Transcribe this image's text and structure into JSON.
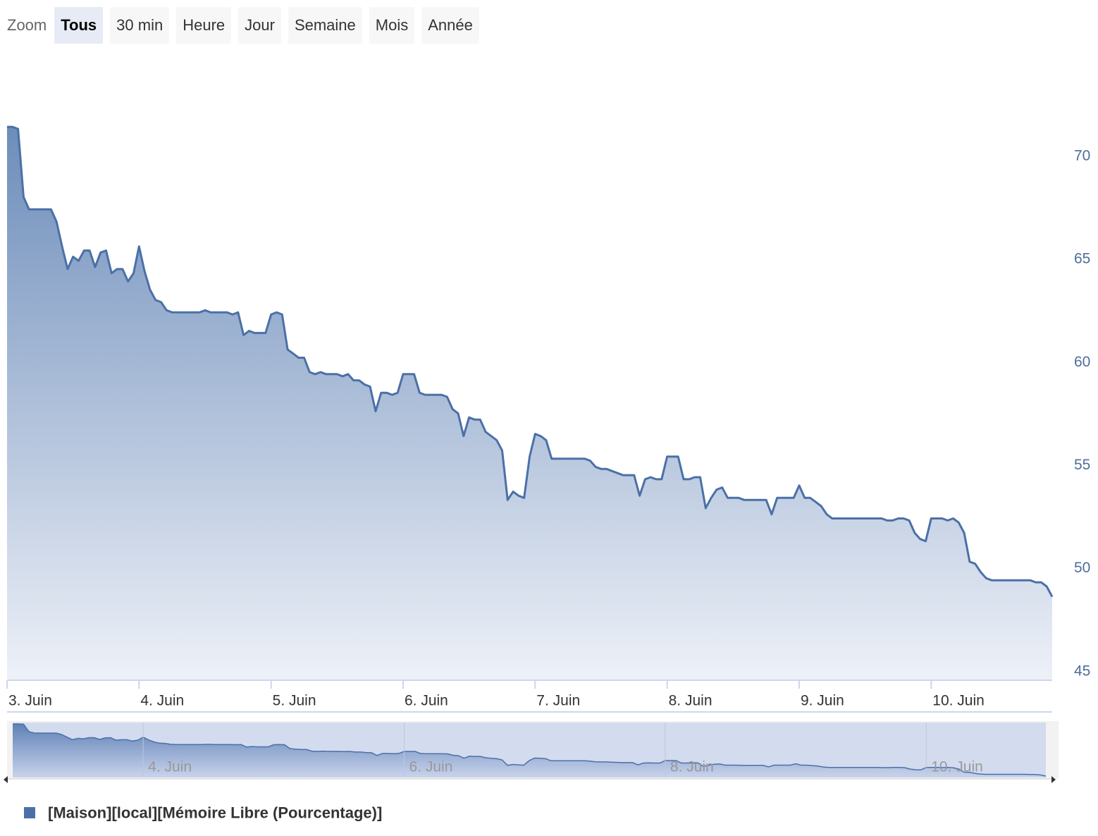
{
  "chart_data": {
    "type": "area",
    "range_selector": {
      "label": "Zoom",
      "buttons": [
        "Tous",
        "30 min",
        "Heure",
        "Jour",
        "Semaine",
        "Mois",
        "Année"
      ],
      "selected": 0
    },
    "x": [
      0,
      1,
      2,
      3,
      4,
      5,
      6,
      7,
      8,
      9,
      10,
      11,
      12,
      13,
      14,
      15,
      16,
      17,
      18,
      19,
      20,
      21,
      22,
      23,
      24,
      25,
      26,
      27,
      28,
      29,
      30,
      31,
      32,
      33,
      34,
      35,
      36,
      37,
      38,
      39,
      40,
      41,
      42,
      43,
      44,
      45,
      46,
      47,
      48,
      49,
      50,
      51,
      52,
      53,
      54,
      55,
      56,
      57,
      58,
      59,
      60,
      61,
      62,
      63,
      64,
      65,
      66,
      67,
      68,
      69,
      70,
      71,
      72,
      73,
      74,
      75,
      76,
      77,
      78,
      79,
      80,
      81,
      82,
      83,
      84,
      85,
      86,
      87,
      88,
      89,
      90,
      91,
      92,
      93,
      94,
      95,
      96,
      97,
      98,
      99,
      100,
      101,
      102,
      103,
      104,
      105,
      106,
      107,
      108,
      109,
      110,
      111,
      112,
      113,
      114,
      115,
      116,
      117,
      118,
      119,
      120,
      121,
      122,
      123,
      124,
      125,
      126,
      127,
      128,
      129,
      130,
      131,
      132,
      133,
      134,
      135,
      136,
      137,
      138,
      139,
      140,
      141,
      142,
      143,
      144,
      145,
      146,
      147,
      148,
      149,
      150,
      151,
      152,
      153,
      154,
      155,
      156,
      157,
      158,
      159,
      160,
      161,
      162,
      163,
      164,
      165,
      166,
      167,
      168,
      169,
      170,
      171,
      172,
      173,
      174,
      175,
      176,
      177,
      178,
      179,
      180,
      181,
      182,
      183,
      184,
      185,
      186,
      187,
      188,
      189,
      190
    ],
    "series": [
      {
        "name": "[Maison][local][Mémoire Libre (Pourcentage)]",
        "color": "#4b70a7",
        "values": [
          71.4,
          71.4,
          71.3,
          68.0,
          67.4,
          67.4,
          67.4,
          67.4,
          67.4,
          66.8,
          65.6,
          64.5,
          65.1,
          64.9,
          65.4,
          65.4,
          64.6,
          65.3,
          65.4,
          64.3,
          64.5,
          64.5,
          63.9,
          64.3,
          65.6,
          64.4,
          63.5,
          63.0,
          62.9,
          62.5,
          62.4,
          62.4,
          62.4,
          62.4,
          62.4,
          62.4,
          62.5,
          62.4,
          62.4,
          62.4,
          62.4,
          62.3,
          62.4,
          61.3,
          61.5,
          61.4,
          61.4,
          61.4,
          62.3,
          62.4,
          62.3,
          60.6,
          60.4,
          60.2,
          60.2,
          59.5,
          59.4,
          59.5,
          59.4,
          59.4,
          59.4,
          59.3,
          59.4,
          59.1,
          59.1,
          58.9,
          58.8,
          57.6,
          58.5,
          58.5,
          58.4,
          58.5,
          59.4,
          59.4,
          59.4,
          58.5,
          58.4,
          58.4,
          58.4,
          58.4,
          58.3,
          57.7,
          57.5,
          56.4,
          57.3,
          57.2,
          57.2,
          56.6,
          56.4,
          56.2,
          55.7,
          53.3,
          53.7,
          53.5,
          53.4,
          55.4,
          56.5,
          56.4,
          56.2,
          55.3,
          55.3,
          55.3,
          55.3,
          55.3,
          55.3,
          55.3,
          55.2,
          54.9,
          54.8,
          54.8,
          54.7,
          54.6,
          54.5,
          54.5,
          54.5,
          53.5,
          54.3,
          54.4,
          54.3,
          54.3,
          55.4,
          55.4,
          55.4,
          54.3,
          54.3,
          54.4,
          54.4,
          52.9,
          53.4,
          53.8,
          53.9,
          53.4,
          53.4,
          53.4,
          53.3,
          53.3,
          53.3,
          53.3,
          53.3,
          52.6,
          53.4,
          53.4,
          53.4,
          53.4,
          54.0,
          53.4,
          53.4,
          53.2,
          53.0,
          52.6,
          52.4,
          52.4,
          52.4,
          52.4,
          52.4,
          52.4,
          52.4,
          52.4,
          52.4,
          52.4,
          52.3,
          52.3,
          52.4,
          52.4,
          52.3,
          51.7,
          51.4,
          51.3,
          52.4,
          52.4,
          52.4,
          52.3,
          52.4,
          52.2,
          51.7,
          50.3,
          50.2,
          49.8,
          49.5,
          49.4,
          49.4,
          49.4,
          49.4,
          49.4,
          49.4,
          49.4,
          49.4,
          49.3,
          49.3,
          49.1,
          48.6
        ]
      }
    ],
    "xlim": [
      0,
      190
    ],
    "xticks": [
      {
        "value": 0,
        "label": "3. Juin"
      },
      {
        "value": 24,
        "label": "4. Juin"
      },
      {
        "value": 48,
        "label": "5. Juin"
      },
      {
        "value": 72,
        "label": "6. Juin"
      },
      {
        "value": 96,
        "label": "7. Juin"
      },
      {
        "value": 120,
        "label": "8. Juin"
      },
      {
        "value": 144,
        "label": "9. Juin"
      },
      {
        "value": 168,
        "label": "10. Juin"
      }
    ],
    "ylim": [
      44.55,
      72.7
    ],
    "yticks": [
      45,
      50,
      55,
      60,
      65,
      70
    ],
    "navigator": {
      "ylim": [
        48,
        72
      ],
      "xticks": [
        {
          "value": 24,
          "label": "4. Juin"
        },
        {
          "value": 72,
          "label": "6. Juin"
        },
        {
          "value": 120,
          "label": "8. Juin"
        },
        {
          "value": 168,
          "label": "10. Juin"
        }
      ]
    }
  }
}
